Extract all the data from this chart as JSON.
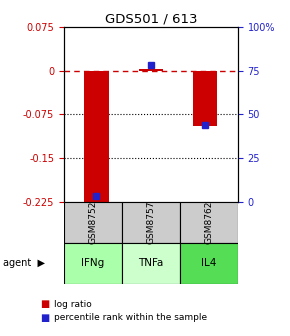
{
  "title": "GDS501 / 613",
  "samples": [
    "GSM8752",
    "GSM8757",
    "GSM8762"
  ],
  "agents": [
    "IFNg",
    "TNFa",
    "IL4"
  ],
  "log_ratios": [
    -0.225,
    0.002,
    -0.095
  ],
  "percentile_ranks": [
    3,
    78,
    44
  ],
  "ylim_left": [
    -0.225,
    0.075
  ],
  "ylim_right": [
    0,
    100
  ],
  "yticks_left": [
    0.075,
    0.0,
    -0.075,
    -0.15,
    -0.225
  ],
  "ytick_labels_left": [
    "0.075",
    "0",
    "-0.075",
    "-0.15",
    "-0.225"
  ],
  "yticks_right": [
    100,
    75,
    50,
    25,
    0
  ],
  "ytick_labels_right": [
    "100%",
    "75",
    "50",
    "25",
    "0"
  ],
  "bar_color": "#cc0000",
  "dot_color": "#2222cc",
  "agent_colors": [
    "#aaffaa",
    "#ccffcc",
    "#55dd55"
  ],
  "sample_bg": "#cccccc",
  "grid_lines": [
    -0.075,
    -0.15
  ],
  "zero_line": 0.0,
  "bar_width": 0.45
}
